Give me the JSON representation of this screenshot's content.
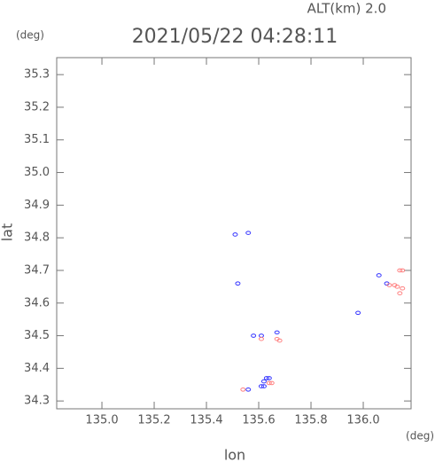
{
  "chart_data": {
    "type": "scatter",
    "alt_label": "ALT(km) 2.0",
    "title": "2021/05/22 04:28:11",
    "y_unit": "(deg)",
    "x_unit": "(deg)",
    "xlabel": "lon",
    "ylabel": "lat",
    "xlim": [
      134.827,
      136.183
    ],
    "ylim": [
      34.276,
      35.352
    ],
    "xticks": [
      {
        "value": 135,
        "label": "135.0"
      },
      {
        "value": 135.2,
        "label": "135.2"
      },
      {
        "value": 135.4,
        "label": "135.4"
      },
      {
        "value": 135.6,
        "label": "135.6"
      },
      {
        "value": 135.8,
        "label": "135.8"
      },
      {
        "value": 136,
        "label": "136.0"
      }
    ],
    "yticks": [
      34.3,
      34.4,
      34.5,
      34.6,
      34.7,
      34.8,
      34.9,
      {
        "value": 35,
        "label": "35.0"
      },
      35.1,
      35.2,
      35.3
    ],
    "series": [
      {
        "color": "#3333ff",
        "x": [
          135.51,
          135.56,
          135.52,
          135.58,
          135.61,
          135.67,
          135.98,
          135.62,
          135.63,
          135.64,
          135.61,
          135.56,
          136.06,
          136.09,
          135.62
        ],
        "y": [
          34.81,
          34.815,
          34.66,
          34.5,
          34.5,
          34.51,
          34.57,
          34.36,
          34.37,
          34.37,
          34.345,
          34.335,
          34.685,
          34.66,
          34.345
        ]
      },
      {
        "color": "#ff8080",
        "x": [
          135.67,
          135.68,
          135.54,
          135.64,
          135.65,
          136.14,
          136.15,
          136.12,
          136.13,
          136.15,
          136.14,
          136.1,
          135.61
        ],
        "y": [
          34.49,
          34.485,
          34.335,
          34.355,
          34.355,
          34.7,
          34.7,
          34.655,
          34.65,
          34.645,
          34.63,
          34.655,
          34.49
        ]
      }
    ]
  }
}
